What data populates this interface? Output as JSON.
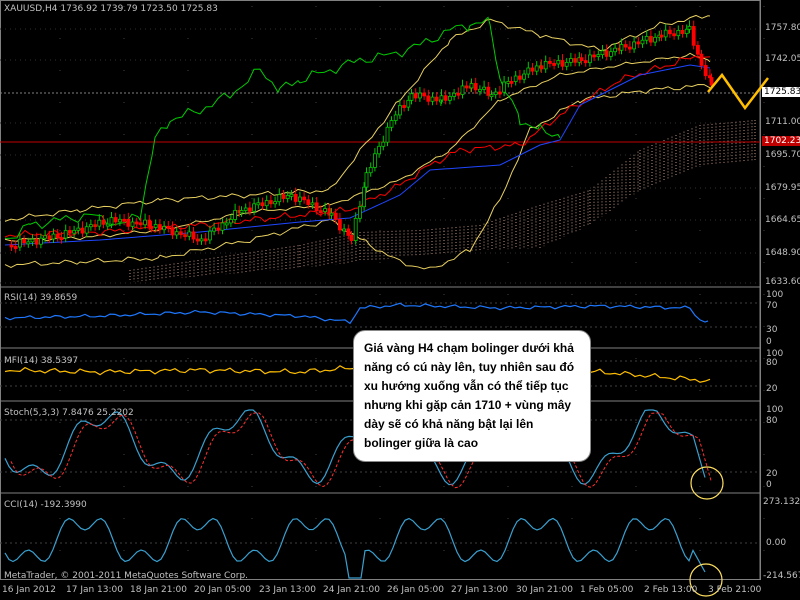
{
  "platform": {
    "copyright": "MetaTrader, © 2001-2011 MetaQuotes Software Corp."
  },
  "main_panel": {
    "header": "XAUUSD,H4  1736.92 1739.79 1723.50 1725.83",
    "price_labels": [
      "1757.80",
      "1742.05",
      "1711.00",
      "1695.70",
      "1679.95",
      "1664.65",
      "1648.90",
      "1633.60"
    ],
    "current_price": "1725.83",
    "resistance_price": "1702.23",
    "colors": {
      "bull": "#00c800",
      "bear": "#ff0000",
      "ma_red": "#ff0000",
      "ma_blue": "#1e46ff",
      "bollinger": "#e8d060",
      "ichimoku_cloud": "#f0b8a0",
      "chikou": "#00cc00",
      "forecast": "#ffbf00",
      "resistance_line": "#c00000"
    }
  },
  "rsi_panel": {
    "header": "RSI(14) 39.8659",
    "levels": [
      "100",
      "70",
      "30",
      "0"
    ],
    "value": 39.87
  },
  "mfi_panel": {
    "header": "MFI(14) 38.5397",
    "levels": [
      "100",
      "80",
      "20"
    ],
    "value": 38.54
  },
  "stoch_panel": {
    "header": "Stoch(5,3,3) 7.8476 25.2202",
    "levels": [
      "100",
      "80",
      "20",
      "0"
    ],
    "main": 7.85,
    "signal": 25.22
  },
  "cci_panel": {
    "header": "CCI(14) -192.3990",
    "levels": [
      "273.1324",
      "0.00",
      "-214.567"
    ],
    "value": -192.399
  },
  "time_axis": [
    "16 Jan 2012",
    "17 Jan 13:00",
    "18 Jan 21:00",
    "20 Jan 05:00",
    "23 Jan 13:00",
    "24 Jan 21:00",
    "26 Jan 05:00",
    "27 Jan 13:00",
    "30 Jan 21:00",
    "1 Feb 05:00",
    "2 Feb 13:00",
    "3 Feb 21:00"
  ],
  "annotation": {
    "text": "Giá vàng H4 chạm bolinger dưới khả năng có cú này lên, tuy nhiên sau đó xu hướng xuống vẫn có thể tiếp tục nhưng khi gặp cản 1710 + vùng mây dày sẽ có khả năng bật lại lên bolinger giữa là cao"
  }
}
